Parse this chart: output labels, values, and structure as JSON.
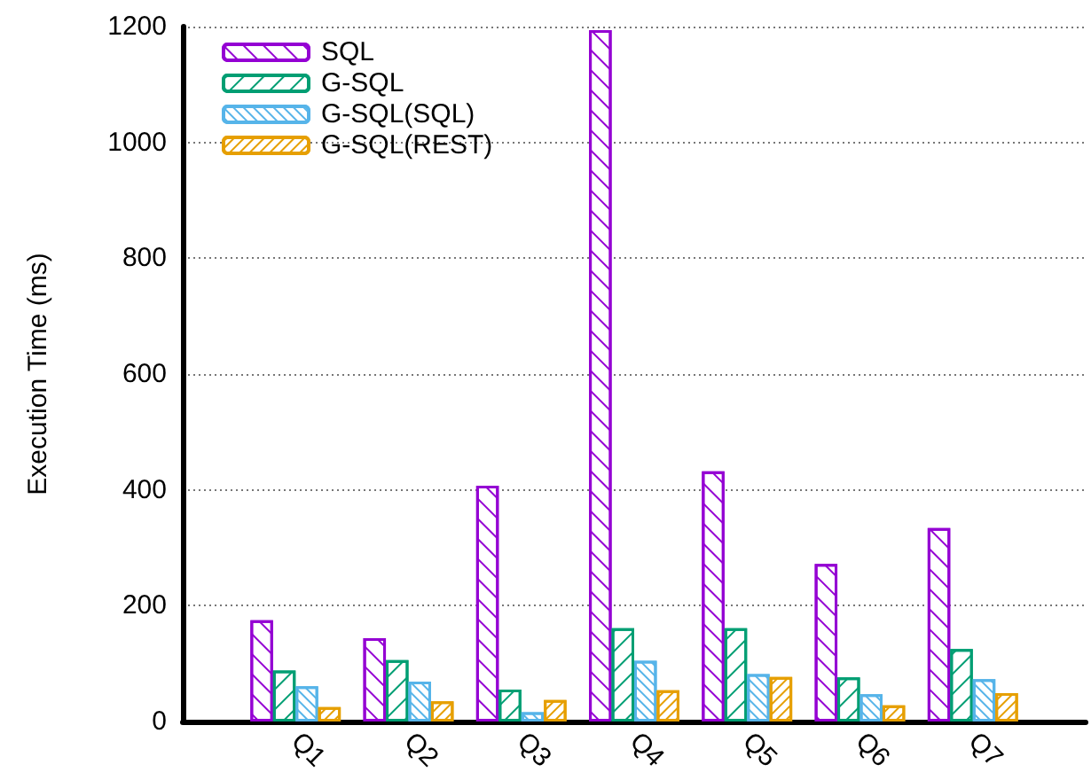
{
  "chart_data": {
    "type": "bar",
    "ylabel": "Execution Time (ms)",
    "categories": [
      "Q1",
      "Q2",
      "Q3",
      "Q4",
      "Q5",
      "Q6",
      "Q7"
    ],
    "series": [
      {
        "name": "SQL",
        "color": "#9400d3",
        "values": [
          175,
          144,
          407,
          1194,
          432,
          272,
          334
        ]
      },
      {
        "name": "G-SQL",
        "color": "#009e73",
        "values": [
          88,
          106,
          55,
          161,
          161,
          76,
          125
        ]
      },
      {
        "name": "G-SQL(SQL)",
        "color": "#56b4e9",
        "values": [
          61,
          69,
          16,
          105,
          82,
          47,
          73
        ]
      },
      {
        "name": "G-SQL(REST)",
        "color": "#e69f00",
        "values": [
          25,
          35,
          37,
          54,
          77,
          28,
          49
        ]
      }
    ],
    "ylim": [
      0,
      1200
    ],
    "yticks": [
      0,
      200,
      400,
      600,
      800,
      1000,
      1200
    ],
    "grid": "y",
    "legend": "top left"
  }
}
